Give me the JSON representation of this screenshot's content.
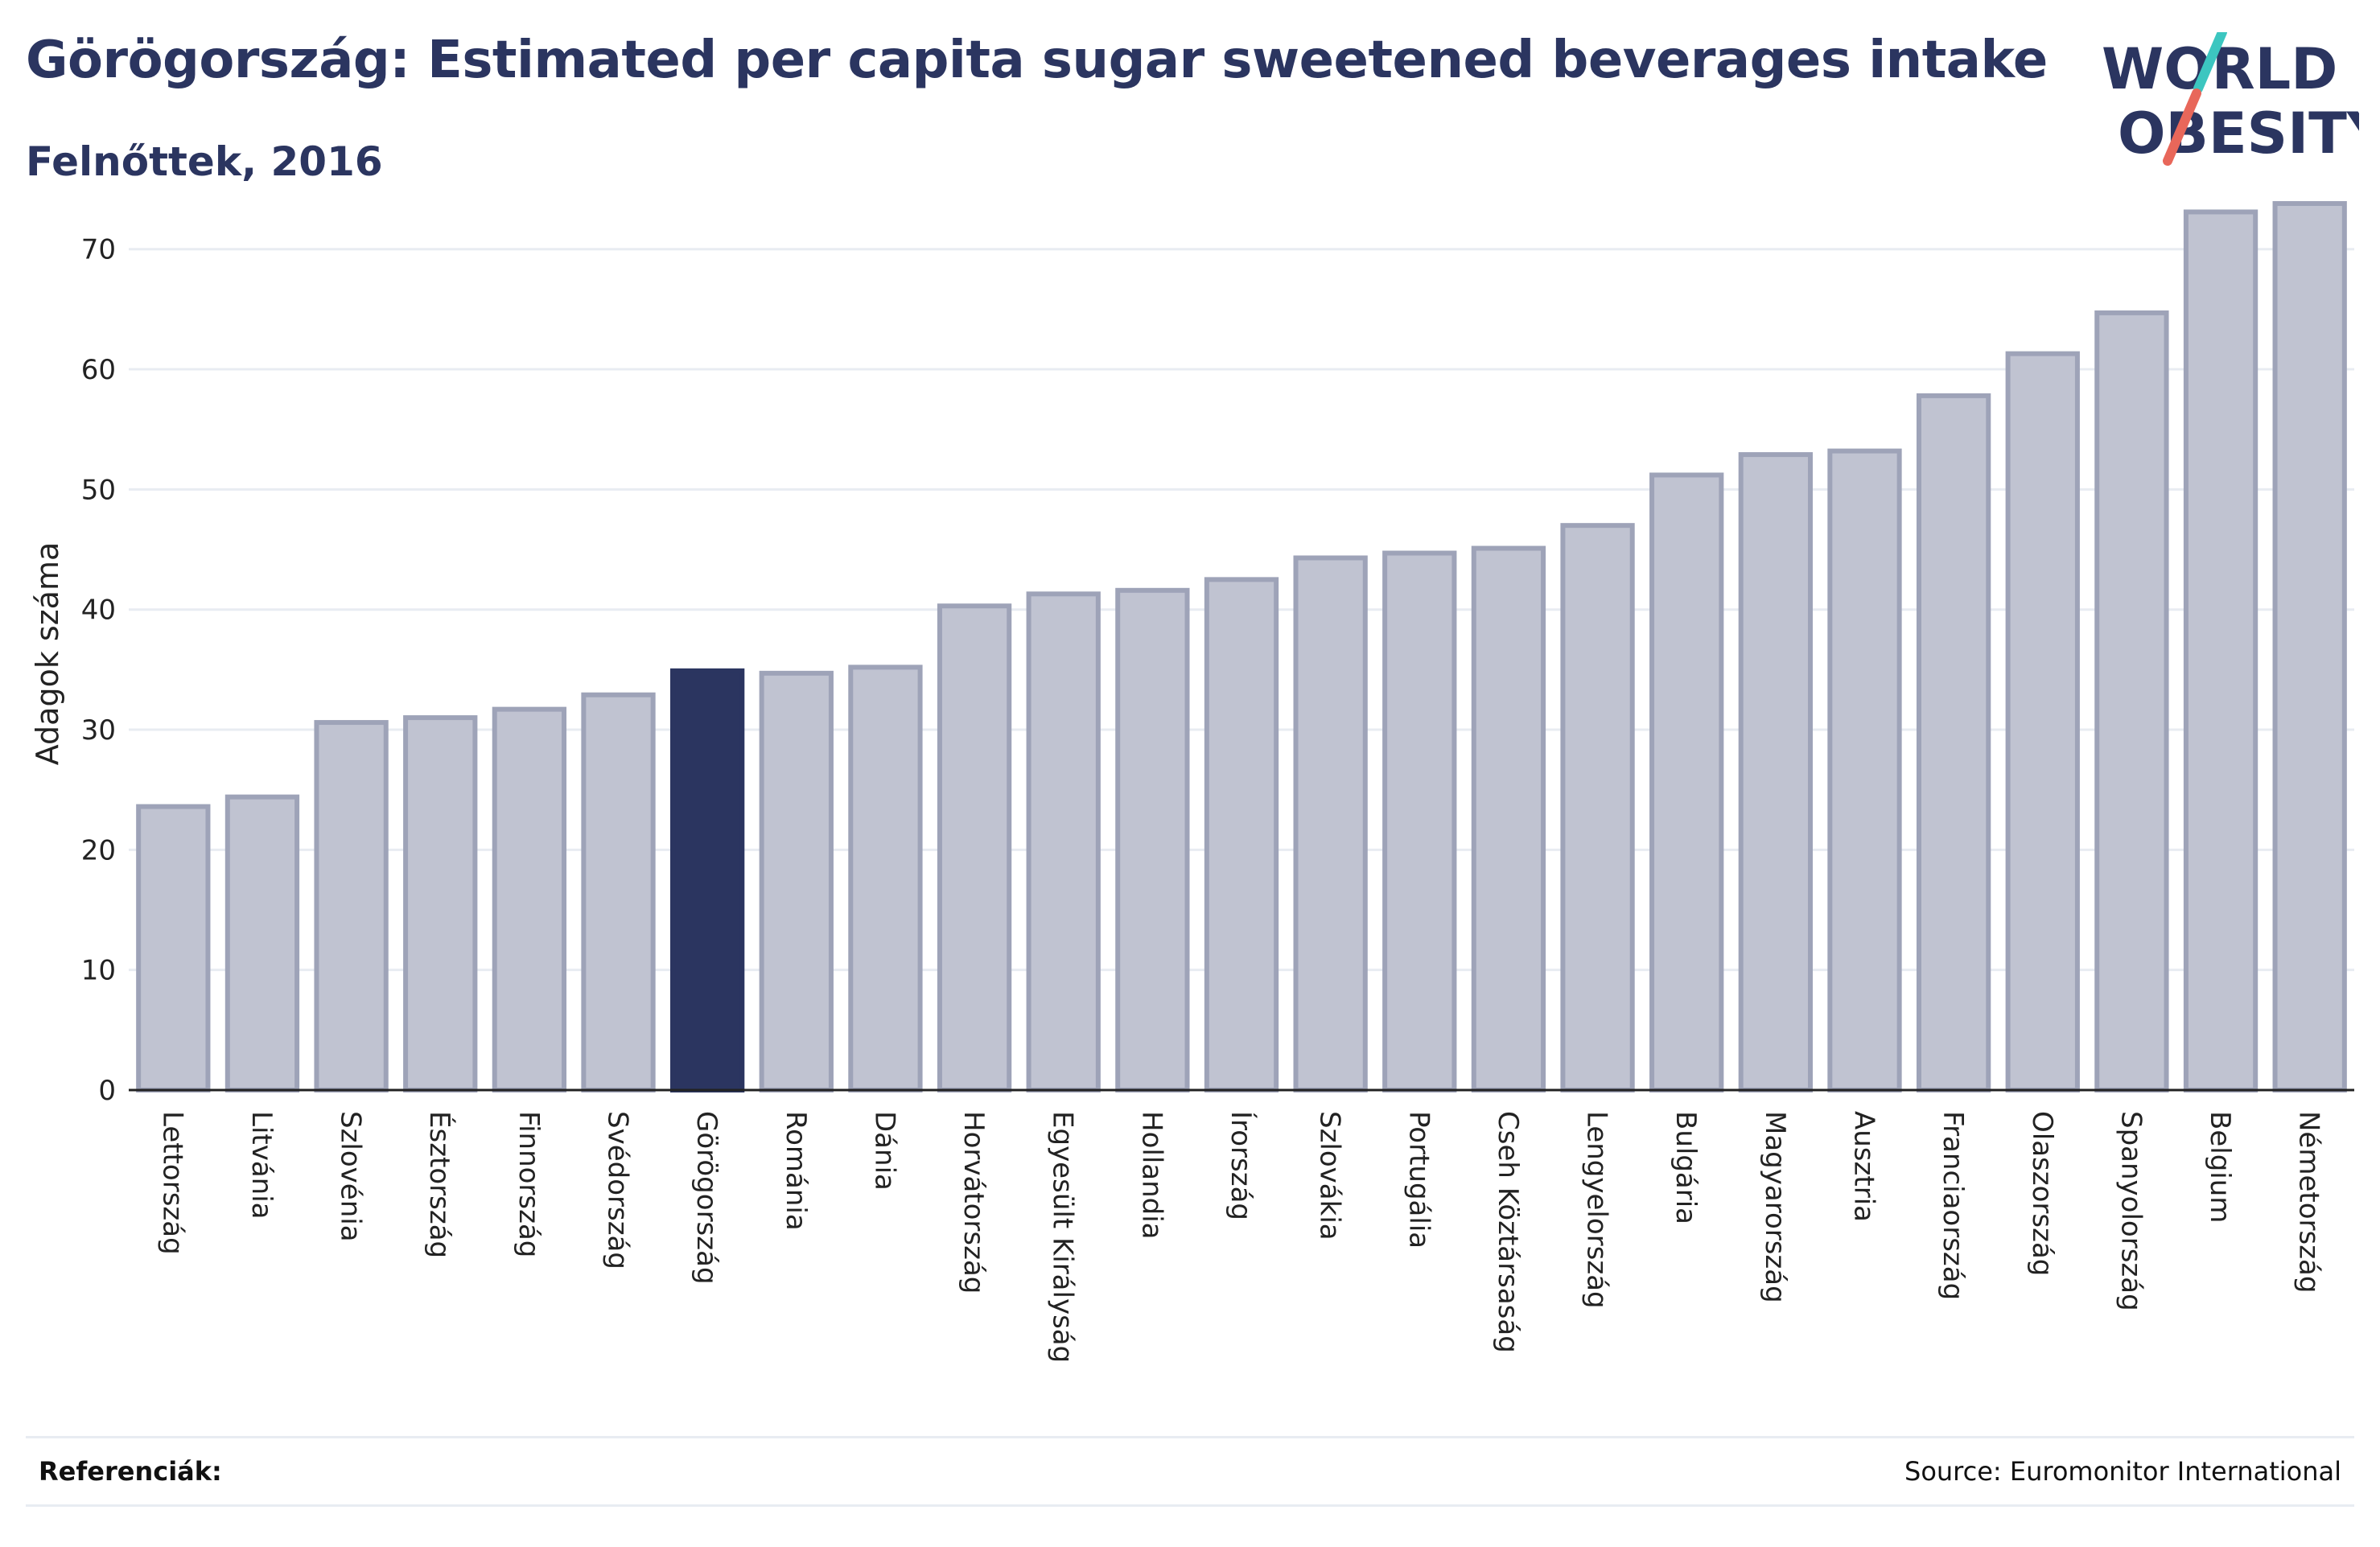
{
  "header": {
    "title": "Görögország: Estimated per capita sugar sweetened beverages intake",
    "subtitle": "Felnőttek, 2016"
  },
  "logo": {
    "line1": "WORLD",
    "line2": "OBESITY",
    "text_color": "#2b3560",
    "slash_colors": [
      "#3cc6c0",
      "#e8675a"
    ]
  },
  "footer": {
    "references_label": "Referenciák:",
    "source": "Source: Euromonitor International"
  },
  "colors": {
    "bar": "#c0c3d1",
    "bar_border": "#9ea3b8",
    "highlight": "#2b3560",
    "grid": "#e8ecf2",
    "axis": "#222222"
  },
  "chart_data": {
    "type": "bar",
    "ylabel": "Adagok száma",
    "xlabel": "",
    "ylim": [
      0,
      74
    ],
    "yticks": [
      0,
      10,
      20,
      30,
      40,
      50,
      60,
      70
    ],
    "grid": true,
    "highlight": "Görögország",
    "categories": [
      "Lettország",
      "Litvánia",
      "Szlovénia",
      "Észtország",
      "Finnország",
      "Svédország",
      "Görögország",
      "Románia",
      "Dánia",
      "Horvátország",
      "Egyesült Királyság",
      "Hollandia",
      "Írország",
      "Szlovákia",
      "Portugália",
      "Cseh Köztársaság",
      "Lengyelország",
      "Bulgária",
      "Magyarország",
      "Ausztria",
      "Franciaország",
      "Olaszország",
      "Spanyolország",
      "Belgium",
      "Németország"
    ],
    "values": [
      23.6,
      24.4,
      30.6,
      31.0,
      31.7,
      32.9,
      34.9,
      34.7,
      35.2,
      40.3,
      41.3,
      41.6,
      42.5,
      44.3,
      44.7,
      45.1,
      47.0,
      51.2,
      52.9,
      53.2,
      57.8,
      61.3,
      64.7,
      73.1,
      73.8
    ]
  }
}
